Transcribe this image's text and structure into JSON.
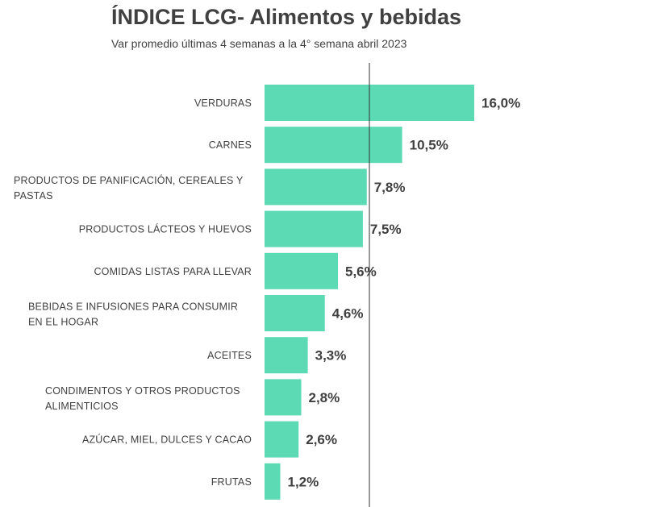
{
  "chart_data": {
    "type": "bar",
    "orientation": "horizontal",
    "title": "ÍNDICE LCG- Alimentos y bebidas",
    "subtitle": "Var promedio últimas 4 semanas a la 4° semana abril 2023",
    "categories": [
      [
        "VERDURAS"
      ],
      [
        "CARNES"
      ],
      [
        "PRODUCTOS DE PANIFICACIÓN, CEREALES Y",
        "PASTAS"
      ],
      [
        "PRODUCTOS LÁCTEOS Y HUEVOS"
      ],
      [
        "COMIDAS LISTAS PARA LLEVAR"
      ],
      [
        "BEBIDAS E INFUSIONES PARA CONSUMIR",
        "EN EL HOGAR"
      ],
      [
        "ACEITES"
      ],
      [
        "CONDIMENTOS Y OTROS PRODUCTOS",
        "ALIMENTICIOS"
      ],
      [
        "AZÚCAR, MIEL, DULCES Y CACAO"
      ],
      [
        "FRUTAS"
      ]
    ],
    "values": [
      16.0,
      10.5,
      7.8,
      7.5,
      5.6,
      4.6,
      3.3,
      2.8,
      2.6,
      1.2
    ],
    "value_labels": [
      "16,0%",
      "10,5%",
      "7,8%",
      "7,5%",
      "5,6%",
      "4,6%",
      "3,3%",
      "2,8%",
      "2,6%",
      "1,2%"
    ],
    "reference_line": 8.0,
    "xlim": [
      0,
      16.0
    ],
    "bar_color": "#5CDAB3",
    "grid": false,
    "legend": "none"
  }
}
